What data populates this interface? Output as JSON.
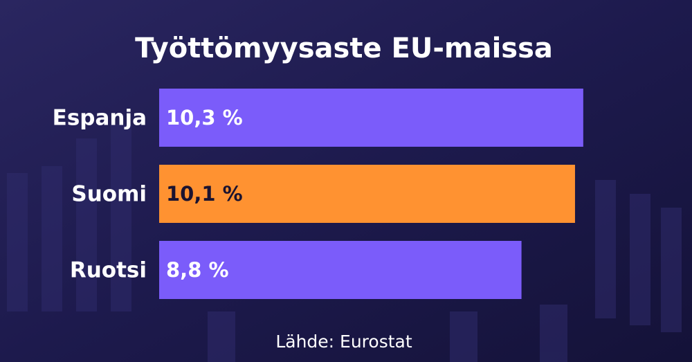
{
  "chart_data": {
    "type": "bar",
    "orientation": "horizontal",
    "title": "Työttömyysaste EU-maissa",
    "source": "Lähde: Eurostat",
    "categories": [
      "Espanja",
      "Suomi",
      "Ruotsi"
    ],
    "values": [
      10.3,
      10.1,
      8.8
    ],
    "value_labels": [
      "10,3 %",
      "10,1 %",
      "8,8 %"
    ],
    "colors": [
      "#7b5cfa",
      "#ff9231",
      "#7b5cfa"
    ],
    "value_label_colors": [
      "#ffffff",
      "#1b1330",
      "#ffffff"
    ]
  }
}
